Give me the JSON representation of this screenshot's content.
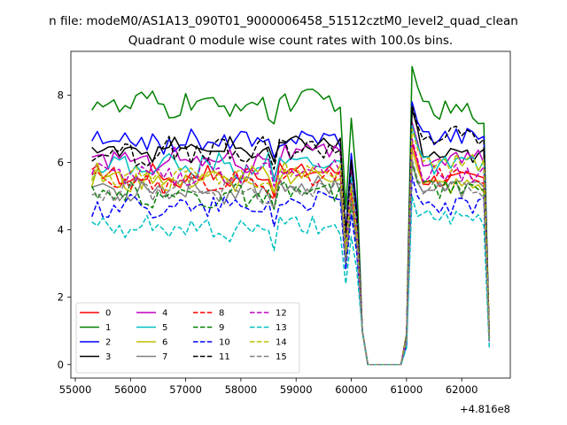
{
  "chart_data": {
    "type": "line",
    "suptitle": "n file: modeM0/AS1A13_090T01_9000006458_51512cztM0_level2_quad_clean",
    "title": "Quadrant 0 module wise count rates with 100.0s bins.",
    "xlabel": "",
    "ylabel": "",
    "x_offset_label": "+4.816e8",
    "xlim": [
      54920,
      62880
    ],
    "ylim": [
      -0.4,
      9.3
    ],
    "xticks": [
      55000,
      56000,
      57000,
      58000,
      59000,
      60000,
      61000,
      62000
    ],
    "yticks": [
      0,
      2,
      4,
      6,
      8
    ],
    "grid": false,
    "legend": {
      "placement": "lower-left",
      "columns": 4
    },
    "x": [
      55300,
      55400,
      55500,
      55600,
      55700,
      55800,
      55900,
      56000,
      56100,
      56200,
      56300,
      56400,
      56500,
      56600,
      56700,
      56800,
      56900,
      57000,
      57100,
      57200,
      57300,
      57400,
      57500,
      57600,
      57700,
      57800,
      57900,
      58000,
      58100,
      58200,
      58300,
      58400,
      58500,
      58600,
      58700,
      58800,
      58900,
      59000,
      59100,
      59200,
      59300,
      59400,
      59500,
      59600,
      59700,
      59800,
      59900,
      60000,
      60100,
      60200,
      60300,
      60400,
      60500,
      60600,
      60700,
      60800,
      60900,
      61000,
      61100,
      61200,
      61300,
      61400,
      61500,
      61600,
      61700,
      61800,
      61900,
      62000,
      62100,
      62200,
      62300,
      62400,
      62500
    ],
    "gap": {
      "dip_start": 59900,
      "low_end": 60900,
      "low_level": 0.0
    },
    "series": [
      {
        "name": "0",
        "color": "#ff0000",
        "dash": "solid",
        "base": 5.6,
        "amp": 0.25,
        "peak": 6.6,
        "post": 5.5,
        "edge_end": 0.9
      },
      {
        "name": "1",
        "color": "#008000",
        "dash": "solid",
        "base": 7.7,
        "amp": 0.35,
        "peak": 8.85,
        "post": 7.5,
        "edge_end": 0.9
      },
      {
        "name": "2",
        "color": "#0000ff",
        "dash": "solid",
        "base": 6.6,
        "amp": 0.3,
        "peak": 7.8,
        "post": 6.8,
        "edge_end": 0.8
      },
      {
        "name": "3",
        "color": "#000000",
        "dash": "solid",
        "base": 6.4,
        "amp": 0.25,
        "peak": 7.6,
        "post": 6.2,
        "edge_end": 0.8
      },
      {
        "name": "4",
        "color": "#bf00bf",
        "dash": "solid",
        "base": 6.1,
        "amp": 0.3,
        "peak": 7.2,
        "post": 6.1,
        "edge_end": 0.8
      },
      {
        "name": "5",
        "color": "#00bfbf",
        "dash": "solid",
        "base": 5.9,
        "amp": 0.3,
        "peak": 7.1,
        "post": 5.9,
        "edge_end": 0.8
      },
      {
        "name": "6",
        "color": "#bfbf00",
        "dash": "solid",
        "base": 5.5,
        "amp": 0.3,
        "peak": 6.4,
        "post": 5.3,
        "edge_end": 0.7
      },
      {
        "name": "7",
        "color": "#808080",
        "dash": "solid",
        "base": 5.2,
        "amp": 0.3,
        "peak": 6.0,
        "post": 5.2,
        "edge_end": 0.7
      },
      {
        "name": "8",
        "color": "#ff0000",
        "dash": "dashed",
        "base": 5.4,
        "amp": 0.25,
        "peak": 6.6,
        "post": 5.6,
        "edge_end": 0.8
      },
      {
        "name": "9",
        "color": "#008000",
        "dash": "dashed",
        "base": 5.0,
        "amp": 0.3,
        "peak": 6.0,
        "post": 5.2,
        "edge_end": 0.7
      },
      {
        "name": "10",
        "color": "#0000ff",
        "dash": "dashed",
        "base": 4.7,
        "amp": 0.3,
        "peak": 5.6,
        "post": 4.7,
        "edge_end": 0.6
      },
      {
        "name": "11",
        "color": "#000000",
        "dash": "dashed",
        "base": 6.3,
        "amp": 0.35,
        "peak": 7.7,
        "post": 6.8,
        "edge_end": 0.8
      },
      {
        "name": "12",
        "color": "#bf00bf",
        "dash": "dashed",
        "base": 5.7,
        "amp": 0.3,
        "peak": 6.7,
        "post": 5.7,
        "edge_end": 0.8
      },
      {
        "name": "13",
        "color": "#00bfbf",
        "dash": "dashed",
        "base": 4.0,
        "amp": 0.3,
        "peak": 5.0,
        "post": 4.3,
        "edge_end": 0.5
      },
      {
        "name": "14",
        "color": "#bfbf00",
        "dash": "dashed",
        "base": 5.6,
        "amp": 0.3,
        "peak": 7.0,
        "post": 6.0,
        "edge_end": 0.8
      },
      {
        "name": "15",
        "color": "#808080",
        "dash": "dashed",
        "base": 5.1,
        "amp": 0.3,
        "peak": 6.1,
        "post": 5.2,
        "edge_end": 0.7
      }
    ]
  }
}
